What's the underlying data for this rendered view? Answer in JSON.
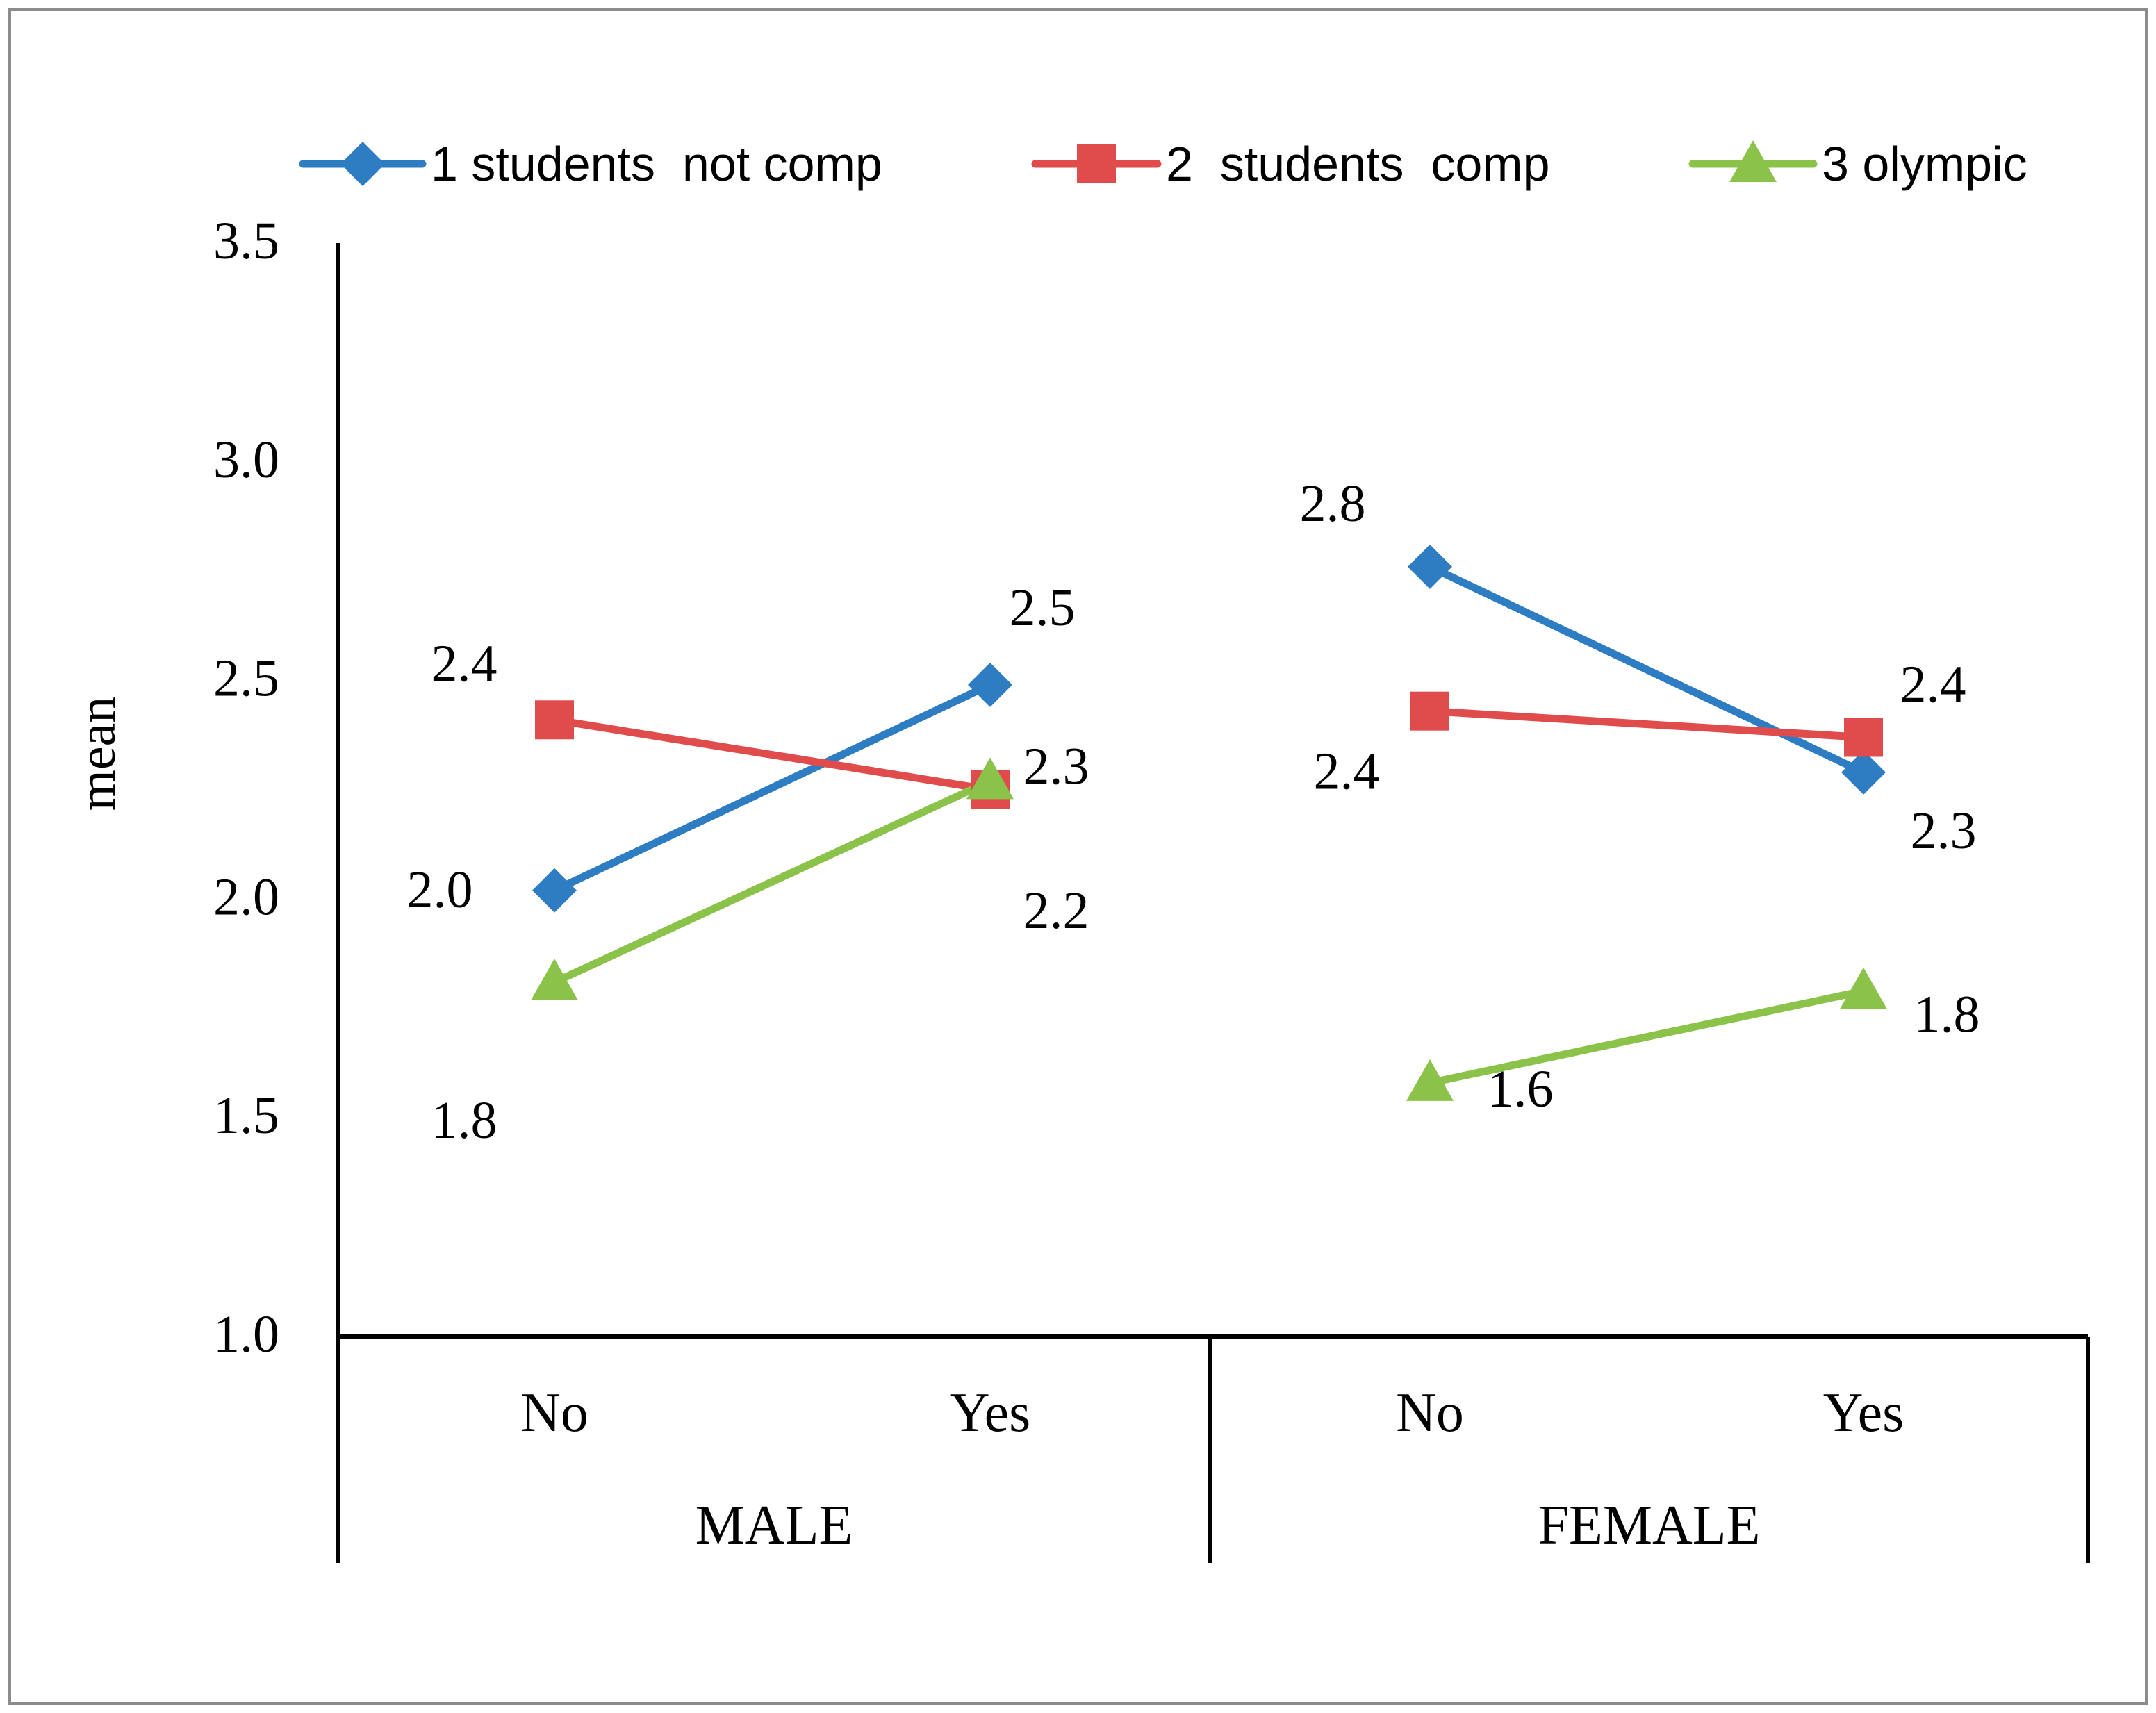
{
  "chart_data": {
    "type": "line",
    "title": "",
    "ylabel": "mean",
    "xlabel": "",
    "ylim": [
      1.0,
      3.5
    ],
    "yticks": [
      "1.0",
      "1.5",
      "2.0",
      "2.5",
      "3.0",
      "3.5"
    ],
    "ytick_values": [
      1.0,
      1.5,
      2.0,
      2.5,
      3.0,
      3.5
    ],
    "grid": false,
    "legend_position": "top",
    "groups": [
      {
        "label": "MALE",
        "categories": [
          "No",
          "Yes"
        ]
      },
      {
        "label": "FEMALE",
        "categories": [
          "No",
          "Yes"
        ]
      }
    ],
    "series": [
      {
        "name": "1 students  not comp",
        "color": "#2E7DC2",
        "marker": "diamond",
        "values": [
          [
            2.02,
            2.49
          ],
          [
            2.76,
            2.29
          ]
        ],
        "labels": [
          [
            "2.0",
            "2.5"
          ],
          [
            "2.8",
            "2.3"
          ]
        ]
      },
      {
        "name": "2  students  comp",
        "color": "#E04B4B",
        "marker": "square",
        "values": [
          [
            2.41,
            2.25
          ],
          [
            2.43,
            2.37
          ]
        ],
        "labels": [
          [
            "2.4",
            "2.2"
          ],
          [
            "2.4",
            "2.4"
          ]
        ]
      },
      {
        "name": "3 olympic",
        "color": "#8BC34A",
        "marker": "triangle",
        "values": [
          [
            1.81,
            2.27
          ],
          [
            1.58,
            1.79
          ]
        ],
        "labels": [
          [
            "1.8",
            "2.3"
          ],
          [
            "1.6",
            "1.8"
          ]
        ]
      }
    ]
  }
}
